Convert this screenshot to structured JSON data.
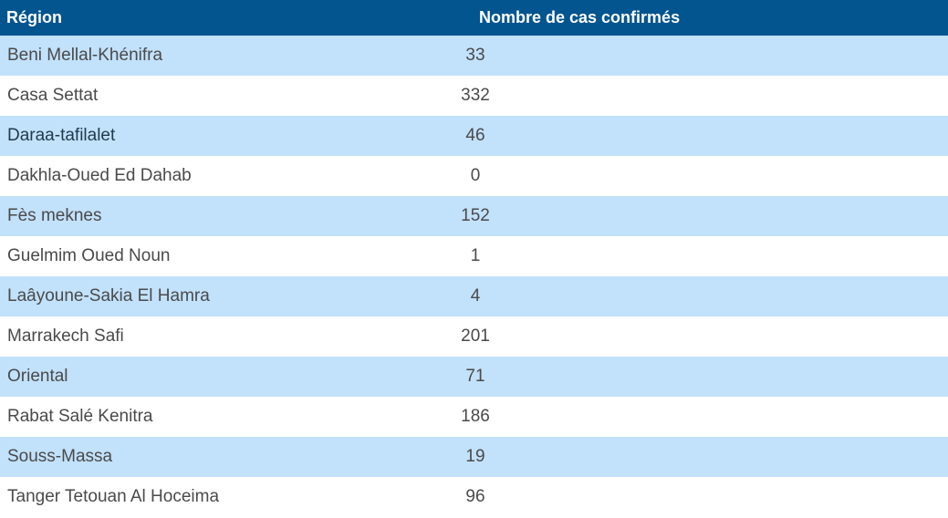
{
  "table": {
    "headers": {
      "region": "Région",
      "count": "Nombre de cas confirmés"
    },
    "rows": [
      {
        "region": "Beni Mellal-Khénifra",
        "count": "33"
      },
      {
        "region": "Casa Settat",
        "count": "332"
      },
      {
        "region": "Daraa-tafilalet",
        "count": "46"
      },
      {
        "region": "Dakhla-Oued Ed Dahab",
        "count": "0"
      },
      {
        "region": "Fès meknes",
        "count": "152"
      },
      {
        "region": "Guelmim Oued Noun",
        "count": "1"
      },
      {
        "region": "Laâyoune-Sakia El Hamra",
        "count": "4"
      },
      {
        "region": "Marrakech Safi",
        "count": "201"
      },
      {
        "region": "Oriental",
        "count": "71"
      },
      {
        "region": "Rabat Salé Kenitra",
        "count": "186"
      },
      {
        "region": "Souss-Massa",
        "count": "19"
      },
      {
        "region": "Tanger Tetouan Al Hoceima",
        "count": "96"
      }
    ]
  },
  "colors": {
    "header_bg": "#02558f",
    "stripe": "#c2e1fb",
    "text": "#4a4a4a"
  }
}
